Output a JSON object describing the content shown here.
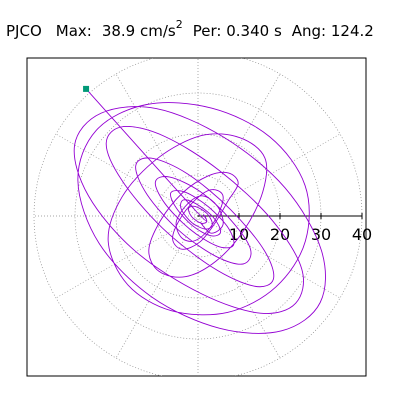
{
  "header": {
    "station": "PJCO",
    "max_label": "Max:",
    "max_value": "38.9",
    "max_unit": "cm/s",
    "max_unit_exp": "2",
    "per_label": "Per:",
    "per_value": "0.340 s",
    "ang_label": "Ang:",
    "ang_value": "124.2"
  },
  "chart_data": {
    "type": "scatter",
    "title": "",
    "radial_axis": {
      "ticks": [
        10,
        20,
        30,
        40
      ],
      "tick_labels": [
        "10",
        "20",
        "30",
        "40"
      ],
      "range": [
        0,
        40
      ]
    },
    "grid": true,
    "grid_style": "dotted polar",
    "series": [
      {
        "style": "orbit",
        "color": "#9400d3",
        "x": [
          0.5,
          3.2,
          6.1,
          4.8,
          1.2,
          -2.5,
          -5.3,
          -4.1,
          -1.0,
          2.6,
          5.4,
          6.0,
          3.1,
          -0.8,
          -4.5,
          -6.2,
          -3.9,
          0.4,
          4.1,
          7.3,
          9.8,
          7.4,
          2.5,
          -3.8,
          -9.2,
          -12.0,
          -9.5,
          -3.1,
          4.4,
          11.2,
          15.8,
          16.3,
          10.2,
          0.8,
          -9.8,
          -18.5,
          -21.9,
          -17.1,
          -6.5,
          7.2,
          19.0,
          26.2,
          26.1,
          17.5,
          3.4,
          -12.5,
          -24.8,
          -29.3,
          -24.1,
          -11.2,
          5.3,
          20.4,
          29.8,
          30.1,
          21.2,
          6.3,
          -10.2,
          -23.6,
          -30.1,
          -26.7,
          -15.4,
          0.9,
          15.2,
          23.8,
          25.3,
          17.9,
          5.2,
          -8.1,
          -18.2,
          -22.4,
          -18.5,
          -8.7,
          3.5,
          13.6,
          18.4,
          16.1,
          7.9,
          -2.6,
          -11.3,
          -15.2,
          -12.4,
          -4.8,
          4.3,
          11.0,
          12.8,
          8.2,
          0.6,
          -6.9,
          -10.4,
          -8.1,
          -2.0,
          4.6,
          8.6,
          7.5,
          2.6,
          -3.1,
          -6.6,
          -5.4,
          -1.3,
          3.1,
          5.5,
          3.7,
          -0.5,
          -3.6,
          -4.1,
          -1.5,
          1.9,
          3.5,
          2.2,
          -0.6,
          -2.3,
          -1.6,
          0.6,
          2.1,
          1.4,
          -0.4
        ],
        "y": [
          -1.5,
          -4.2,
          -2.1,
          2.3,
          4.9,
          3.0,
          -1.4,
          -5.2,
          -6.1,
          -3.3,
          1.5,
          5.2,
          6.4,
          3.8,
          -0.9,
          -5.6,
          -8.1,
          -6.4,
          -1.8,
          3.6,
          8.0,
          10.5,
          9.8,
          5.6,
          -1.2,
          -8.4,
          -13.5,
          -14.8,
          -11.0,
          -3.5,
          5.9,
          14.2,
          19.1,
          19.6,
          14.1,
          4.7,
          -6.2,
          -16.8,
          -23.1,
          -23.5,
          -17.3,
          -6.1,
          7.5,
          19.3,
          26.3,
          27.2,
          20.9,
          8.6,
          -6.7,
          -19.8,
          -27.4,
          -28.0,
          -21.1,
          -8.4,
          6.9,
          19.2,
          26.2,
          25.1,
          17.3,
          4.9,
          -8.5,
          -19.0,
          -23.7,
          -21.3,
          -12.9,
          -0.8,
          11.1,
          19.4,
          21.8,
          17.7,
          8.6,
          -2.9,
          -12.5,
          -17.1,
          -15.4,
          -8.3,
          1.6,
          10.3,
          14.1,
          12.2,
          5.2,
          -3.4,
          -9.8,
          -11.7,
          -8.1,
          -1.2,
          5.9,
          9.5,
          8.3,
          3.1,
          -3.2,
          -7.3,
          -7.2,
          -3.1,
          2.2,
          5.8,
          5.7,
          2.1,
          -2.4,
          -4.8,
          -3.9,
          -0.3,
          3.0,
          3.9,
          1.7,
          -1.6,
          -3.2,
          -2.0,
          0.6,
          2.3,
          1.9,
          -0.1,
          -1.7,
          -1.4,
          0.3,
          1.1
        ],
        "end_point": [
          -27.3,
          31.0
        ]
      }
    ],
    "end_marker_color": "#009977"
  }
}
